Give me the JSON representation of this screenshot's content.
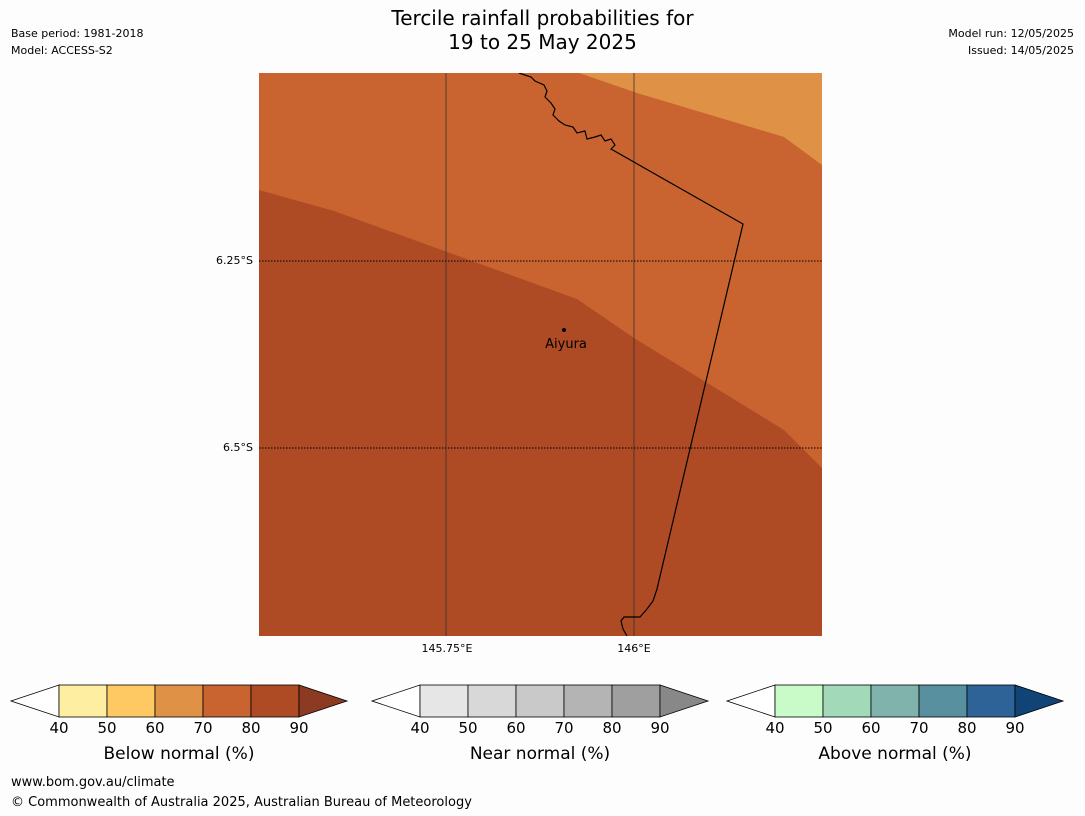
{
  "header": {
    "base_period": "Base period: 1981-2018",
    "model": "Model: ACCESS-S2",
    "title_line1": "Tercile rainfall probabilities for",
    "title_line2": "19 to 25 May 2025",
    "model_run": "Model run: 12/05/2025",
    "issued": "Issued: 14/05/2025"
  },
  "map": {
    "lat_labels": [
      "6.25°S",
      "6.5°S"
    ],
    "lon_labels": [
      "145.75°E",
      "146°E"
    ],
    "place_name": "Aiyura",
    "colors": {
      "below_60_70": "#c96431",
      "below_70_80": "#ae4b24",
      "below_50_60": "#df9145"
    }
  },
  "colorbars": [
    {
      "label": "Below normal (%)",
      "ticks": [
        "40",
        "50",
        "60",
        "70",
        "80",
        "90"
      ],
      "colors": [
        "#fdeea1",
        "#fec962",
        "#df9145",
        "#c96431",
        "#ae4b24"
      ],
      "extend_low": "#ffffff",
      "extend_high": "#8c3a21"
    },
    {
      "label": "Near normal (%)",
      "ticks": [
        "40",
        "50",
        "60",
        "70",
        "80",
        "90"
      ],
      "colors": [
        "#e6e6e6",
        "#d8d8d8",
        "#c9c9c9",
        "#b4b4b4",
        "#9f9f9f"
      ],
      "extend_low": "#ffffff",
      "extend_high": "#888888"
    },
    {
      "label": "Above normal (%)",
      "ticks": [
        "40",
        "50",
        "60",
        "70",
        "80",
        "90"
      ],
      "colors": [
        "#c8fbc8",
        "#a2d9b9",
        "#7fb3ac",
        "#5890a0",
        "#2d6396"
      ],
      "extend_low": "#ffffff",
      "extend_high": "#104477"
    }
  ],
  "footer": {
    "url": "www.bom.gov.au/climate",
    "copyright": "© Commonwealth of Australia 2025, Australian Bureau of Meteorology"
  }
}
